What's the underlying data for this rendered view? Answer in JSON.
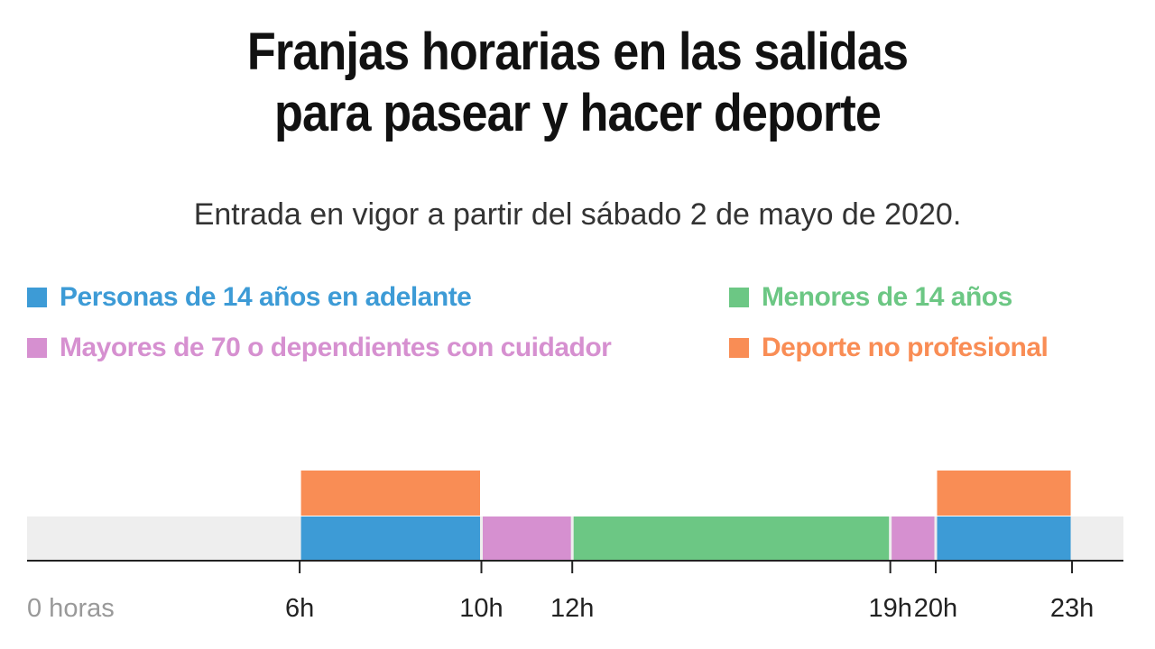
{
  "chart_data": {
    "type": "bar",
    "title_lines": [
      "Franjas horarias en las salidas",
      "para pasear y hacer deporte"
    ],
    "subtitle": "Entrada en vigor a partir del sábado 2 de mayo de 2020.",
    "xlabel": "",
    "ylabel": "",
    "xlim": [
      0,
      24
    ],
    "grid": false,
    "legend_placement": "top",
    "colors": {
      "personas": "#3d9bd6",
      "menores": "#6cc784",
      "mayores": "#d690d0",
      "deporte": "#f98d55",
      "track": "#eeeeee",
      "axis": "#222222",
      "first_tick": "#999999",
      "tick": "#222222"
    },
    "legend": [
      {
        "key": "personas",
        "label": "Personas de 14 años en adelante"
      },
      {
        "key": "menores",
        "label": "Menores de 14 años"
      },
      {
        "key": "mayores",
        "label": "Mayores de 70 o dependientes con cuidador"
      },
      {
        "key": "deporte",
        "label": "Deporte no profesional"
      }
    ],
    "ticks": [
      {
        "value": 0,
        "label": "0 horas"
      },
      {
        "value": 6,
        "label": "6h"
      },
      {
        "value": 10,
        "label": "10h"
      },
      {
        "value": 12,
        "label": "12h"
      },
      {
        "value": 19,
        "label": "19h"
      },
      {
        "value": 20,
        "label": "20h"
      },
      {
        "value": 23,
        "label": "23h"
      }
    ],
    "series": [
      {
        "key": "personas",
        "row": "main",
        "intervals": [
          [
            6,
            10
          ],
          [
            20,
            23
          ]
        ]
      },
      {
        "key": "mayores",
        "row": "main",
        "intervals": [
          [
            10,
            12
          ],
          [
            19,
            20
          ]
        ]
      },
      {
        "key": "menores",
        "row": "main",
        "intervals": [
          [
            12,
            19
          ]
        ]
      },
      {
        "key": "deporte",
        "row": "upper",
        "intervals": [
          [
            6,
            10
          ],
          [
            20,
            23
          ]
        ]
      }
    ]
  }
}
